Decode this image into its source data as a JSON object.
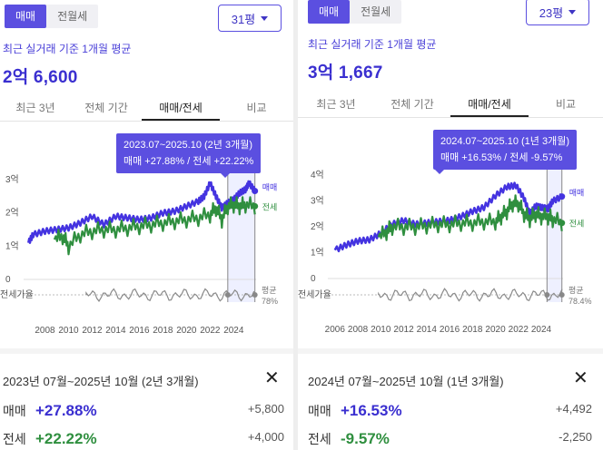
{
  "colors": {
    "accent": "#5b4fe0",
    "sale": "#4433e0",
    "jeonse": "#2f8f3f"
  },
  "left": {
    "toggle": {
      "sale": "매매",
      "jeonse_wolse": "전월세"
    },
    "pyeong": "31평",
    "caption": "최근 실거래 기준 1개월 평균",
    "price": "2억 6,600",
    "tabs": [
      "최근 3년",
      "전체 기간",
      "매매/전세",
      "비교"
    ],
    "active_tab": 2,
    "tooltip": {
      "line1": "2023.07~2025.10 (2년 3개월)",
      "line2": "매매 +27.88%  /  전세 +22.22%"
    },
    "chart_data": {
      "type": "line",
      "y_ticks": [
        "3억",
        "2억",
        "1억",
        "0"
      ],
      "x_ticks": [
        "2008",
        "2010",
        "2012",
        "2014",
        "2016",
        "2018",
        "2020",
        "2022",
        "2024"
      ],
      "ylim": [
        0,
        3
      ],
      "legend": {
        "sale": "매매",
        "jeonse": "전세"
      },
      "ratio_label": "전세가율",
      "avg_label": "평균",
      "avg_value": "78%",
      "series": [
        {
          "name": "매매",
          "x": [
            2006.6,
            2007,
            2008,
            2009,
            2010,
            2011,
            2012,
            2013,
            2014,
            2015,
            2016,
            2017,
            2018,
            2019,
            2020,
            2021,
            2021.5,
            2022,
            2022.5,
            2023,
            2023.5,
            2024,
            2024.5,
            2025,
            2025.3,
            2025.8
          ],
          "values": [
            1.1,
            1.35,
            1.45,
            1.5,
            1.55,
            1.7,
            1.9,
            1.65,
            1.9,
            1.85,
            1.8,
            1.85,
            2.0,
            2.05,
            2.2,
            2.35,
            2.5,
            2.9,
            2.5,
            2.15,
            2.3,
            2.4,
            2.6,
            2.7,
            2.9,
            2.66
          ]
        },
        {
          "name": "전세",
          "x": [
            2008.8,
            2009.5,
            2010,
            2011,
            2012,
            2013,
            2014,
            2015,
            2016,
            2017,
            2018,
            2019,
            2020,
            2021,
            2022,
            2022.5,
            2023,
            2023.5,
            2024,
            2024.5,
            2025,
            2025.8
          ],
          "values": [
            1.2,
            1.3,
            1.0,
            1.35,
            1.45,
            1.5,
            1.5,
            1.55,
            1.6,
            1.65,
            1.7,
            1.75,
            1.8,
            1.85,
            1.95,
            2.15,
            1.8,
            2.2,
            2.25,
            2.2,
            2.25,
            2.2
          ]
        }
      ]
    },
    "summary": {
      "period": "2023년 07월~2025년 10월 (2년 3개월)",
      "sale_label": "매매",
      "sale_pct": "+27.88%",
      "sale_abs": "+5,800",
      "jeonse_label": "전세",
      "jeonse_pct": "+22.22%",
      "jeonse_abs": "+4,000"
    }
  },
  "right": {
    "toggle": {
      "sale": "매매",
      "jeonse_wolse": "전월세"
    },
    "pyeong": "23평",
    "caption": "최근 실거래 기준 1개월 평균",
    "price": "3억 1,667",
    "tabs": [
      "최근 3년",
      "전체 기간",
      "매매/전세",
      "비교"
    ],
    "active_tab": 2,
    "tooltip": {
      "line1": "2024.07~2025.10 (1년 3개월)",
      "line2": "매매 +16.53%  /  전세 -9.57%"
    },
    "chart_data": {
      "type": "line",
      "y_ticks": [
        "4억",
        "3억",
        "2억",
        "1억",
        "0"
      ],
      "x_ticks": [
        "2006",
        "2008",
        "2010",
        "2012",
        "2014",
        "2016",
        "2018",
        "2020",
        "2022",
        "2024"
      ],
      "ylim": [
        0,
        4
      ],
      "legend": {
        "sale": "매매",
        "jeonse": "전세"
      },
      "ratio_label": "전세가율",
      "avg_label": "평균",
      "avg_value": "78.4%",
      "series": [
        {
          "name": "매매",
          "x": [
            2006,
            2007,
            2008,
            2009,
            2010,
            2011,
            2012,
            2013,
            2014,
            2015,
            2016,
            2017,
            2018,
            2019,
            2020,
            2021,
            2021.8,
            2022.5,
            2023,
            2023.5,
            2024,
            2024.6,
            2025,
            2025.8
          ],
          "values": [
            1.1,
            1.3,
            1.45,
            1.5,
            1.75,
            2.1,
            2.25,
            2.1,
            2.15,
            2.2,
            2.25,
            2.4,
            2.6,
            2.75,
            3.2,
            3.55,
            3.6,
            3.1,
            2.5,
            2.8,
            2.75,
            2.7,
            3.0,
            3.17
          ]
        },
        {
          "name": "전세",
          "x": [
            2009.8,
            2010.5,
            2011,
            2012,
            2013,
            2014,
            2015,
            2016,
            2017,
            2018,
            2019,
            2020,
            2020.5,
            2021,
            2021.5,
            2022,
            2022.5,
            2023,
            2023.5,
            2024,
            2024.6,
            2025,
            2025.8
          ],
          "values": [
            1.6,
            1.8,
            2.0,
            2.0,
            2.0,
            2.05,
            2.1,
            2.1,
            2.15,
            2.15,
            2.2,
            2.2,
            2.4,
            2.6,
            2.9,
            2.9,
            2.5,
            2.3,
            2.5,
            2.4,
            2.4,
            2.3,
            2.15
          ]
        }
      ]
    },
    "summary": {
      "period": "2024년 07월~2025년 10월 (1년 3개월)",
      "sale_label": "매매",
      "sale_pct": "+16.53%",
      "sale_abs": "+4,492",
      "jeonse_label": "전세",
      "jeonse_pct": "-9.57%",
      "jeonse_abs": "-2,250"
    }
  }
}
